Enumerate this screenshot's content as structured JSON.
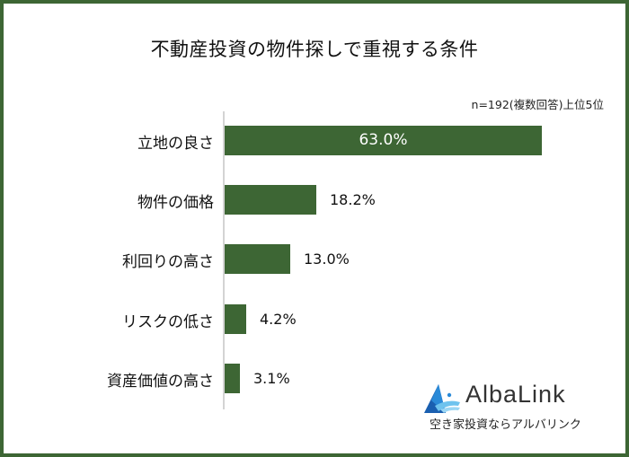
{
  "chart_data": {
    "type": "bar",
    "orientation": "horizontal",
    "title": "不動産投資の物件探しで重視する条件",
    "note": "n=192(複数回答)上位5位",
    "categories": [
      "立地の良さ",
      "物件の価格",
      "利回りの高さ",
      "リスクの低さ",
      "資産価値の高さ"
    ],
    "values": [
      63.0,
      18.2,
      13.0,
      4.2,
      3.1
    ],
    "value_labels": [
      "63.0%",
      "18.2%",
      "13.0%",
      "4.2%",
      "3.1%"
    ],
    "xlabel": "",
    "ylabel": "",
    "xlim": [
      0,
      63.0
    ],
    "grid": false,
    "bar_color": "#3d6634"
  },
  "brand": {
    "name": "AlbaLink",
    "tagline": "空き家投資ならアルバリンク"
  },
  "colors": {
    "frame": "#3d6634",
    "bar": "#3d6634"
  }
}
